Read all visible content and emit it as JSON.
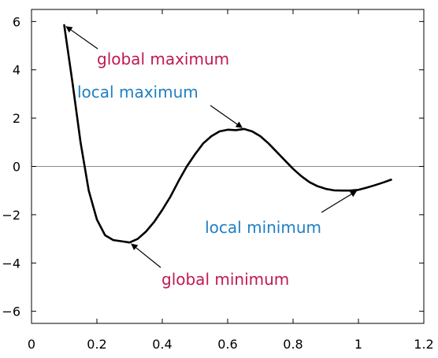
{
  "chart_data": {
    "type": "line",
    "title": "",
    "xlabel": "",
    "ylabel": "",
    "xlim": [
      0,
      1.2
    ],
    "ylim": [
      -6.5,
      6.5
    ],
    "xticks": [
      0,
      0.2,
      0.4,
      0.6,
      0.8,
      1,
      1.2
    ],
    "xtick_labels": [
      "0",
      "0.2",
      "0.4",
      "0.6",
      "0.8",
      "1",
      "1.2"
    ],
    "yticks": [
      -6,
      -4,
      -2,
      0,
      2,
      4,
      6
    ],
    "ytick_labels": [
      "−6",
      "−4",
      "−2",
      "0",
      "2",
      "4",
      "6"
    ],
    "grid": false,
    "zero_line": true,
    "series": [
      {
        "color": "#000000",
        "x": [
          0.1,
          0.125,
          0.15,
          0.175,
          0.2,
          0.225,
          0.25,
          0.275,
          0.3,
          0.325,
          0.35,
          0.375,
          0.4,
          0.425,
          0.45,
          0.475,
          0.5,
          0.525,
          0.55,
          0.575,
          0.6,
          0.625,
          0.65,
          0.675,
          0.7,
          0.725,
          0.75,
          0.775,
          0.8,
          0.825,
          0.85,
          0.875,
          0.9,
          0.925,
          0.95,
          0.975,
          1.0,
          1.025,
          1.05,
          1.075,
          1.1
        ],
        "y": [
          5.85,
          3.5,
          1.0,
          -1.0,
          -2.2,
          -2.85,
          -3.05,
          -3.1,
          -3.15,
          -3.0,
          -2.7,
          -2.3,
          -1.8,
          -1.25,
          -0.6,
          0.0,
          0.5,
          0.95,
          1.25,
          1.45,
          1.52,
          1.5,
          1.55,
          1.45,
          1.25,
          0.95,
          0.6,
          0.25,
          -0.1,
          -0.4,
          -0.65,
          -0.82,
          -0.93,
          -0.99,
          -1.0,
          -1.0,
          -0.97,
          -0.88,
          -0.78,
          -0.67,
          -0.55
        ]
      }
    ],
    "annotations": [
      {
        "text": "global maximum",
        "color": "#c0194f",
        "target": [
          0.1,
          5.85
        ]
      },
      {
        "text": "local maximum",
        "color": "#1f7fc4",
        "target": [
          0.65,
          1.55
        ]
      },
      {
        "text": "local minimum",
        "color": "#1f7fc4",
        "target": [
          1.0,
          -0.97
        ]
      },
      {
        "text": "global minimum",
        "color": "#c0194f",
        "target": [
          0.3,
          -3.15
        ]
      }
    ]
  }
}
